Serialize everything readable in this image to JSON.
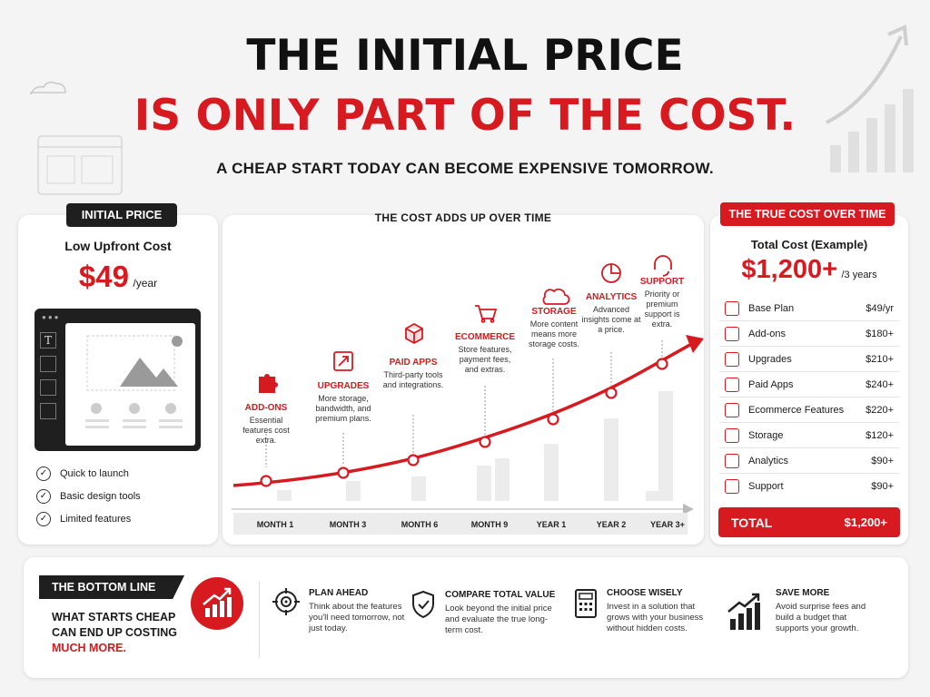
{
  "header": {
    "title_line1": "THE INITIAL PRICE",
    "title_line2": "IS ONLY PART OF THE COST.",
    "subtitle": "A CHEAP START TODAY CAN BECOME EXPENSIVE TOMORROW."
  },
  "left_card": {
    "badge": "INITIAL PRICE",
    "heading": "Low Upfront Cost",
    "price": "$49",
    "price_unit": "/year",
    "checks": [
      "Quick to launch",
      "Basic design tools",
      "Limited features"
    ]
  },
  "center_card": {
    "title": "THE COST ADDS UP OVER TIME",
    "milestones": [
      {
        "title": "ADD-ONS",
        "desc": "Essential features cost extra.",
        "icon": "puzzle-icon"
      },
      {
        "title": "UPGRADES",
        "desc": "More storage, bandwidth, and premium plans.",
        "icon": "upgrade-arrow-icon"
      },
      {
        "title": "PAID APPS",
        "desc": "Third-party tools and integrations.",
        "icon": "package-icon"
      },
      {
        "title": "ECOMMERCE",
        "desc": "Store features, payment fees, and extras.",
        "icon": "cart-icon"
      },
      {
        "title": "STORAGE",
        "desc": "More content means more storage costs.",
        "icon": "cloud-icon"
      },
      {
        "title": "ANALYTICS",
        "desc": "Advanced insights come at a price.",
        "icon": "pie-chart-icon"
      },
      {
        "title": "SUPPORT",
        "desc": "Priority or premium support is extra.",
        "icon": "headset-icon"
      }
    ],
    "x_labels": [
      "MONTH 1",
      "MONTH 3",
      "MONTH 6",
      "MONTH 9",
      "YEAR 1",
      "YEAR 2",
      "YEAR 3+"
    ]
  },
  "right_card": {
    "badge": "THE TRUE COST OVER TIME",
    "heading": "Total Cost (Example)",
    "price": "$1,200+",
    "price_unit": "/3 years",
    "rows": [
      {
        "label": "Base Plan",
        "value": "$49/yr",
        "icon": "arrow-icon"
      },
      {
        "label": "Add-ons",
        "value": "$180+",
        "icon": "puzzle-icon"
      },
      {
        "label": "Upgrades",
        "value": "$210+",
        "icon": "upgrade-icon"
      },
      {
        "label": "Paid Apps",
        "value": "$240+",
        "icon": "package-icon"
      },
      {
        "label": "Ecommerce Features",
        "value": "$220+",
        "icon": "cart-icon"
      },
      {
        "label": "Storage",
        "value": "$120+",
        "icon": "cloud-icon"
      },
      {
        "label": "Analytics",
        "value": "$90+",
        "icon": "pie-chart-icon"
      },
      {
        "label": "Support",
        "value": "$90+",
        "icon": "headset-icon"
      }
    ],
    "total_label": "TOTAL",
    "total_value": "$1,200+"
  },
  "bottom": {
    "badge": "THE BOTTOM LINE",
    "line1": "WHAT STARTS CHEAP",
    "line2": "CAN END UP COSTING",
    "line3": "MUCH MORE.",
    "tips": [
      {
        "title": "PLAN AHEAD",
        "desc": "Think about the features you'll need tomorrow, not just today.",
        "icon": "target-icon"
      },
      {
        "title": "COMPARE TOTAL VALUE",
        "desc": "Look beyond the initial price and evaluate the true long-term cost.",
        "icon": "shield-icon"
      },
      {
        "title": "CHOOSE WISELY",
        "desc": "Invest in a solution that grows with your business without hidden costs.",
        "icon": "calculator-icon"
      },
      {
        "title": "SAVE MORE",
        "desc": "Avoid surprise fees and build a budget that supports your growth.",
        "icon": "growth-chart-icon"
      }
    ]
  },
  "colors": {
    "accent": "#d71920",
    "dark": "#1f1f1f",
    "background": "#f4f4f4"
  }
}
